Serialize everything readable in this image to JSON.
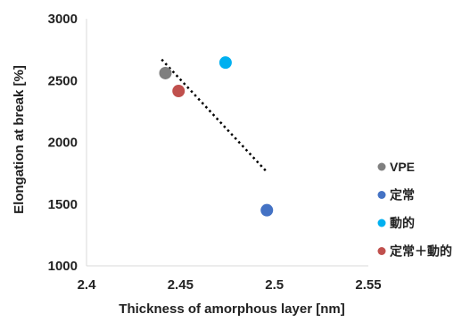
{
  "chart_data": {
    "type": "scatter",
    "xlabel": "Thickness of amorphous layer  [nm]",
    "ylabel": "Elongation at break [%]",
    "xlim": [
      2.4,
      2.55
    ],
    "ylim": [
      1000,
      3000
    ],
    "x_ticks": [
      "2.4",
      "2.45",
      "2.5",
      "2.55"
    ],
    "y_ticks": [
      "1000",
      "1500",
      "2000",
      "2500",
      "3000"
    ],
    "grid": false,
    "legend_position": "right",
    "series": [
      {
        "name": "VPE",
        "color": "#7f7f7f",
        "points": [
          {
            "x": 2.442,
            "y": 2560
          }
        ]
      },
      {
        "name": "定常",
        "color": "#4472c4",
        "points": [
          {
            "x": 2.496,
            "y": 1450
          }
        ]
      },
      {
        "name": "動的",
        "color": "#00b0f0",
        "points": [
          {
            "x": 2.474,
            "y": 2645
          }
        ]
      },
      {
        "name": "定常＋動的",
        "color": "#c0504d",
        "points": [
          {
            "x": 2.449,
            "y": 2415
          }
        ]
      }
    ],
    "trendline": {
      "style": "dotted",
      "color": "#000000",
      "from": {
        "x": 2.44,
        "y": 2670
      },
      "to": {
        "x": 2.496,
        "y": 1760
      }
    }
  }
}
